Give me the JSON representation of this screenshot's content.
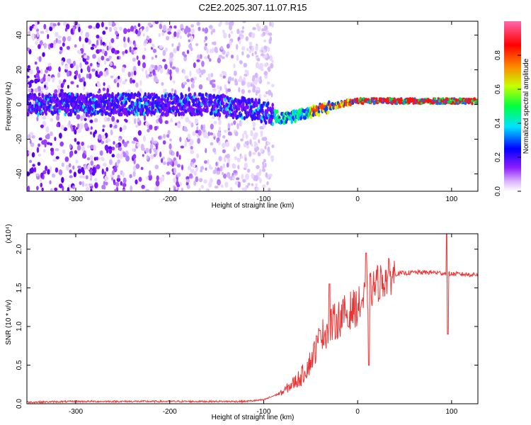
{
  "title": "C2E2.2025.307.11.07.R15",
  "chart_data": [
    {
      "type": "heatmap",
      "name": "spectrogram",
      "xlabel": "Height of straight line (km)",
      "ylabel": "Frequency (Hz)",
      "xlim": [
        -352,
        128
      ],
      "ylim": [
        -50,
        48
      ],
      "xticks": [
        -300,
        -200,
        -100,
        0,
        100
      ],
      "yticks": [
        -40,
        -20,
        0,
        20,
        40
      ],
      "xtick_labels": [
        "-300",
        "-200",
        "-100",
        "0",
        "100"
      ],
      "ytick_labels": [
        "-40",
        "-20",
        "0",
        "20",
        "40"
      ],
      "ridge": {
        "x": [
          -352,
          -300,
          -250,
          -200,
          -150,
          -100,
          -80,
          -60,
          -40,
          -20,
          0,
          50,
          128
        ],
        "freq": [
          0,
          0,
          0,
          0,
          0,
          -4,
          -8,
          -6,
          -3,
          0,
          2,
          2,
          2
        ]
      }
    },
    {
      "type": "colorbar",
      "name": "spectral-colorbar",
      "label": "Normalized spectral amplitude",
      "range": [
        0,
        1
      ],
      "ticks": [
        0.0,
        0.2,
        0.4,
        0.6,
        0.8
      ],
      "tick_labels": [
        "0.0",
        "0.2",
        "0.4",
        "0.6",
        "0.8"
      ],
      "colors": [
        "#ffffff",
        "#d8b0ff",
        "#8c1cff",
        "#0000ff",
        "#00e4ff",
        "#00ff40",
        "#c8ff00",
        "#ff8000",
        "#ff0000",
        "#ff66aa"
      ]
    },
    {
      "type": "line",
      "name": "snr-plot",
      "xlabel": "Height of straight line (km)",
      "ylabel": "SNR (10 * v/v)",
      "exponent": "(x10⁴)",
      "color": "#ee3333",
      "xlim": [
        -352,
        128
      ],
      "ylim": [
        0,
        2.2
      ],
      "xticks": [
        -300,
        -200,
        -100,
        0,
        100
      ],
      "yticks": [
        0.0,
        0.5,
        1.0,
        1.5,
        2.0
      ],
      "xtick_labels": [
        "-300",
        "-200",
        "-100",
        "0",
        "100"
      ],
      "ytick_labels": [
        "0.0",
        "0.5",
        "1.0",
        "1.5",
        "2.0"
      ],
      "x": [
        -352,
        -300,
        -250,
        -200,
        -150,
        -120,
        -100,
        -80,
        -60,
        -50,
        -40,
        -30,
        -20,
        -10,
        0,
        10,
        20,
        30,
        40,
        60,
        80,
        100,
        128
      ],
      "y": [
        0.02,
        0.03,
        0.03,
        0.03,
        0.03,
        0.03,
        0.05,
        0.15,
        0.35,
        0.55,
        0.85,
        1.0,
        1.1,
        1.2,
        1.25,
        1.4,
        1.55,
        1.62,
        1.68,
        1.7,
        1.7,
        1.68,
        1.67
      ],
      "spikes": [
        {
          "x": -40,
          "y": 0.95
        },
        {
          "x": -30,
          "y": 1.55
        },
        {
          "x": -10,
          "y": 1.0
        },
        {
          "x": 9,
          "y": 1.95
        },
        {
          "x": 12,
          "y": 0.5
        },
        {
          "x": 95,
          "y": 2.2
        },
        {
          "x": 96,
          "y": 0.9
        }
      ]
    }
  ]
}
